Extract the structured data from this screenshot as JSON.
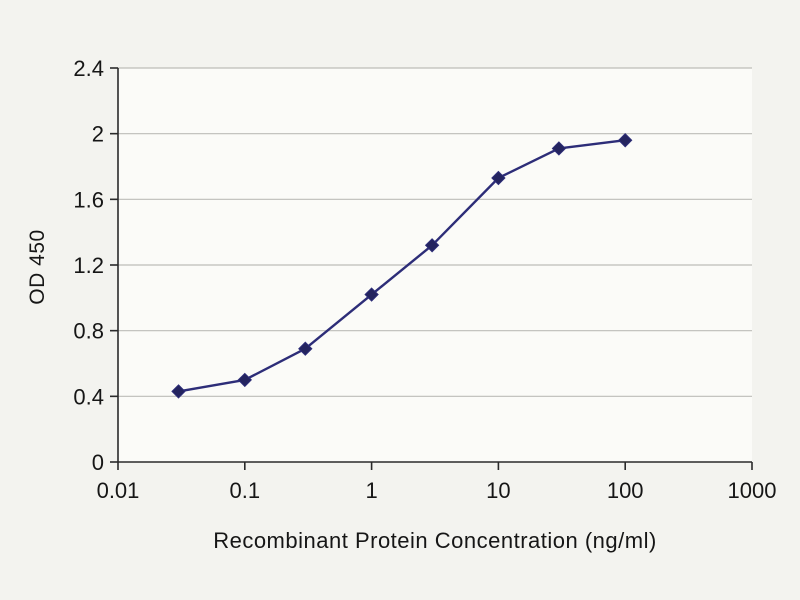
{
  "chart_data": {
    "type": "line",
    "title": "",
    "xlabel": "Recombinant Protein Concentration (ng/ml)",
    "ylabel": "OD 450",
    "x_scale": "log",
    "xlim": [
      0.01,
      1000
    ],
    "ylim": [
      0,
      2.4
    ],
    "x": [
      0.03,
      0.1,
      0.3,
      1,
      3,
      10,
      30,
      100
    ],
    "y": [
      0.43,
      0.5,
      0.69,
      1.02,
      1.32,
      1.73,
      1.91,
      1.96
    ],
    "x_tick_values": [
      0.01,
      0.1,
      1,
      10,
      100,
      1000
    ],
    "x_tick_labels": [
      "0.01",
      "0.1",
      "1",
      "10",
      "100",
      "1000"
    ],
    "y_tick_values": [
      0,
      0.4,
      0.8,
      1.2,
      1.6,
      2,
      2.4
    ],
    "y_tick_labels": [
      "0",
      "0.4",
      "0.8",
      "1.2",
      "1.6",
      "2",
      "2.4"
    ],
    "grid": "horizontal",
    "legend": "none",
    "marker": "diamond",
    "colors": {
      "line": "#2d2d78",
      "marker": "#24245f",
      "grid": "#bdbdb8",
      "axis": "#2a2a2a",
      "tick_text": "#161616",
      "background": "#f3f3ef",
      "plot_background": "#fbfbf8"
    }
  }
}
